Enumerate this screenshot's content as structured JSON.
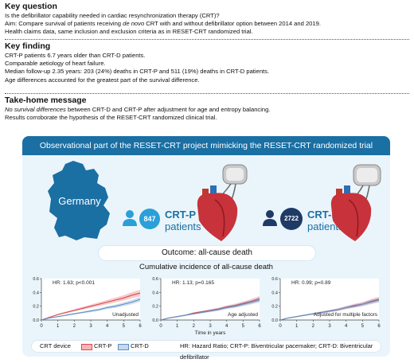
{
  "key_question": {
    "heading": "Key question",
    "lines": [
      "Is the defibrillator capability needed in cardiac resynchronization therapy (CRT)?",
      "Aim: Compare survival of patients receiving de novo CRT with and without defibrillator option between 2014 and 2019.",
      "Health claims data, same inclusion and exclusion criteria as in RESET-CRT randomized trial."
    ]
  },
  "key_finding": {
    "heading": "Key finding",
    "lines": [
      "CRT-P patients 6.7 years older than CRT-D patients.",
      "Comparable aetiology of heart failure.",
      "Median follow-up 2.35 years: 203 (24%) deaths in CRT-P and 511 (19%) deaths in CRT-D patients.",
      "Age differences accounted for the greatest part of the survival difference."
    ]
  },
  "take_home": {
    "heading": "Take-home message",
    "lines": [
      "No survival differences between CRT-D and CRT-P after adjustment for age and entropy balancing.",
      "Results corroborate the hypothesis of the RESET-CRT randomized clinical trial."
    ]
  },
  "graphic": {
    "banner": "Observational part of the RESET-CRT project mimicking the RESET-CRT randomized trial",
    "country": "Germany",
    "crtp": {
      "count": "847",
      "label": "CRT-P",
      "sub": "patients"
    },
    "crtd": {
      "count": "2722",
      "label": "CRT-D",
      "sub": "patients"
    },
    "outcome_prefix": "Outcome:",
    "outcome_value": "all-cause death",
    "curves_title": "Cumulative incidence of all-cause death",
    "legend": {
      "title": "CRT device",
      "crtp": "CRT-P",
      "crtd": "CRT-D",
      "abbrev": "HR: Hazard Ratio; CRT-P: Biventricular pacemaker; CRT-D: Biventricular defibrillator"
    },
    "colors": {
      "crtp": "#e0474c",
      "crtd": "#5b8fc6",
      "brand": "#1a6fa3"
    }
  },
  "chart_data": [
    {
      "type": "line",
      "annotation": "HR: 1.63; p<0.001",
      "label": "Unadjusted",
      "xlabel": "",
      "xticks": [
        "0",
        "1",
        "2",
        "3",
        "4",
        "5",
        "6"
      ],
      "yticks": [
        "0.0",
        "0.2",
        "0.4",
        "0.6"
      ],
      "xlim": [
        0,
        6
      ],
      "ylim": [
        0,
        0.6
      ],
      "series": [
        {
          "name": "CRT-P",
          "x": [
            0,
            0.5,
            1,
            1.5,
            2,
            2.5,
            3,
            3.5,
            4,
            4.5,
            5,
            5.5,
            6
          ],
          "y": [
            0,
            0.04,
            0.08,
            0.11,
            0.14,
            0.17,
            0.2,
            0.23,
            0.26,
            0.29,
            0.32,
            0.36,
            0.39
          ]
        },
        {
          "name": "CRT-D",
          "x": [
            0,
            0.5,
            1,
            1.5,
            2,
            2.5,
            3,
            3.5,
            4,
            4.5,
            5,
            5.5,
            6
          ],
          "y": [
            0,
            0.03,
            0.05,
            0.07,
            0.09,
            0.11,
            0.13,
            0.15,
            0.18,
            0.2,
            0.23,
            0.26,
            0.3
          ]
        }
      ]
    },
    {
      "type": "line",
      "annotation": "HR: 1.13; p=0.165",
      "label": "Age adjusted",
      "xlabel": "Time in years",
      "xticks": [
        "0",
        "1",
        "2",
        "3",
        "4",
        "5",
        "6"
      ],
      "yticks": [
        "0.0",
        "0.2",
        "0.4",
        "0.6"
      ],
      "xlim": [
        0,
        6
      ],
      "ylim": [
        0,
        0.6
      ],
      "series": [
        {
          "name": "CRT-P",
          "x": [
            0,
            0.5,
            1,
            1.5,
            2,
            2.5,
            3,
            3.5,
            4,
            4.5,
            5,
            5.5,
            6
          ],
          "y": [
            0,
            0.03,
            0.05,
            0.07,
            0.1,
            0.12,
            0.14,
            0.16,
            0.19,
            0.21,
            0.24,
            0.27,
            0.31
          ]
        },
        {
          "name": "CRT-D",
          "x": [
            0,
            0.5,
            1,
            1.5,
            2,
            2.5,
            3,
            3.5,
            4,
            4.5,
            5,
            5.5,
            6
          ],
          "y": [
            0,
            0.03,
            0.05,
            0.07,
            0.09,
            0.11,
            0.13,
            0.15,
            0.18,
            0.2,
            0.23,
            0.26,
            0.29
          ]
        }
      ]
    },
    {
      "type": "line",
      "annotation": "HR: 0.99; p=0.89",
      "label": "Adjusted for multiple factors",
      "xlabel": "",
      "xticks": [
        "0",
        "1",
        "2",
        "3",
        "4",
        "5",
        "6"
      ],
      "yticks": [
        "0.0",
        "0.2",
        "0.4",
        "0.6"
      ],
      "xlim": [
        0,
        6
      ],
      "ylim": [
        0,
        0.6
      ],
      "series": [
        {
          "name": "CRT-P",
          "x": [
            0,
            0.5,
            1,
            1.5,
            2,
            2.5,
            3,
            3.5,
            4,
            4.5,
            5,
            5.5,
            6
          ],
          "y": [
            0,
            0.03,
            0.05,
            0.07,
            0.09,
            0.11,
            0.13,
            0.15,
            0.18,
            0.21,
            0.23,
            0.27,
            0.3
          ]
        },
        {
          "name": "CRT-D",
          "x": [
            0,
            0.5,
            1,
            1.5,
            2,
            2.5,
            3,
            3.5,
            4,
            4.5,
            5,
            5.5,
            6
          ],
          "y": [
            0,
            0.03,
            0.05,
            0.07,
            0.09,
            0.11,
            0.13,
            0.15,
            0.18,
            0.2,
            0.23,
            0.26,
            0.29
          ]
        }
      ]
    }
  ]
}
